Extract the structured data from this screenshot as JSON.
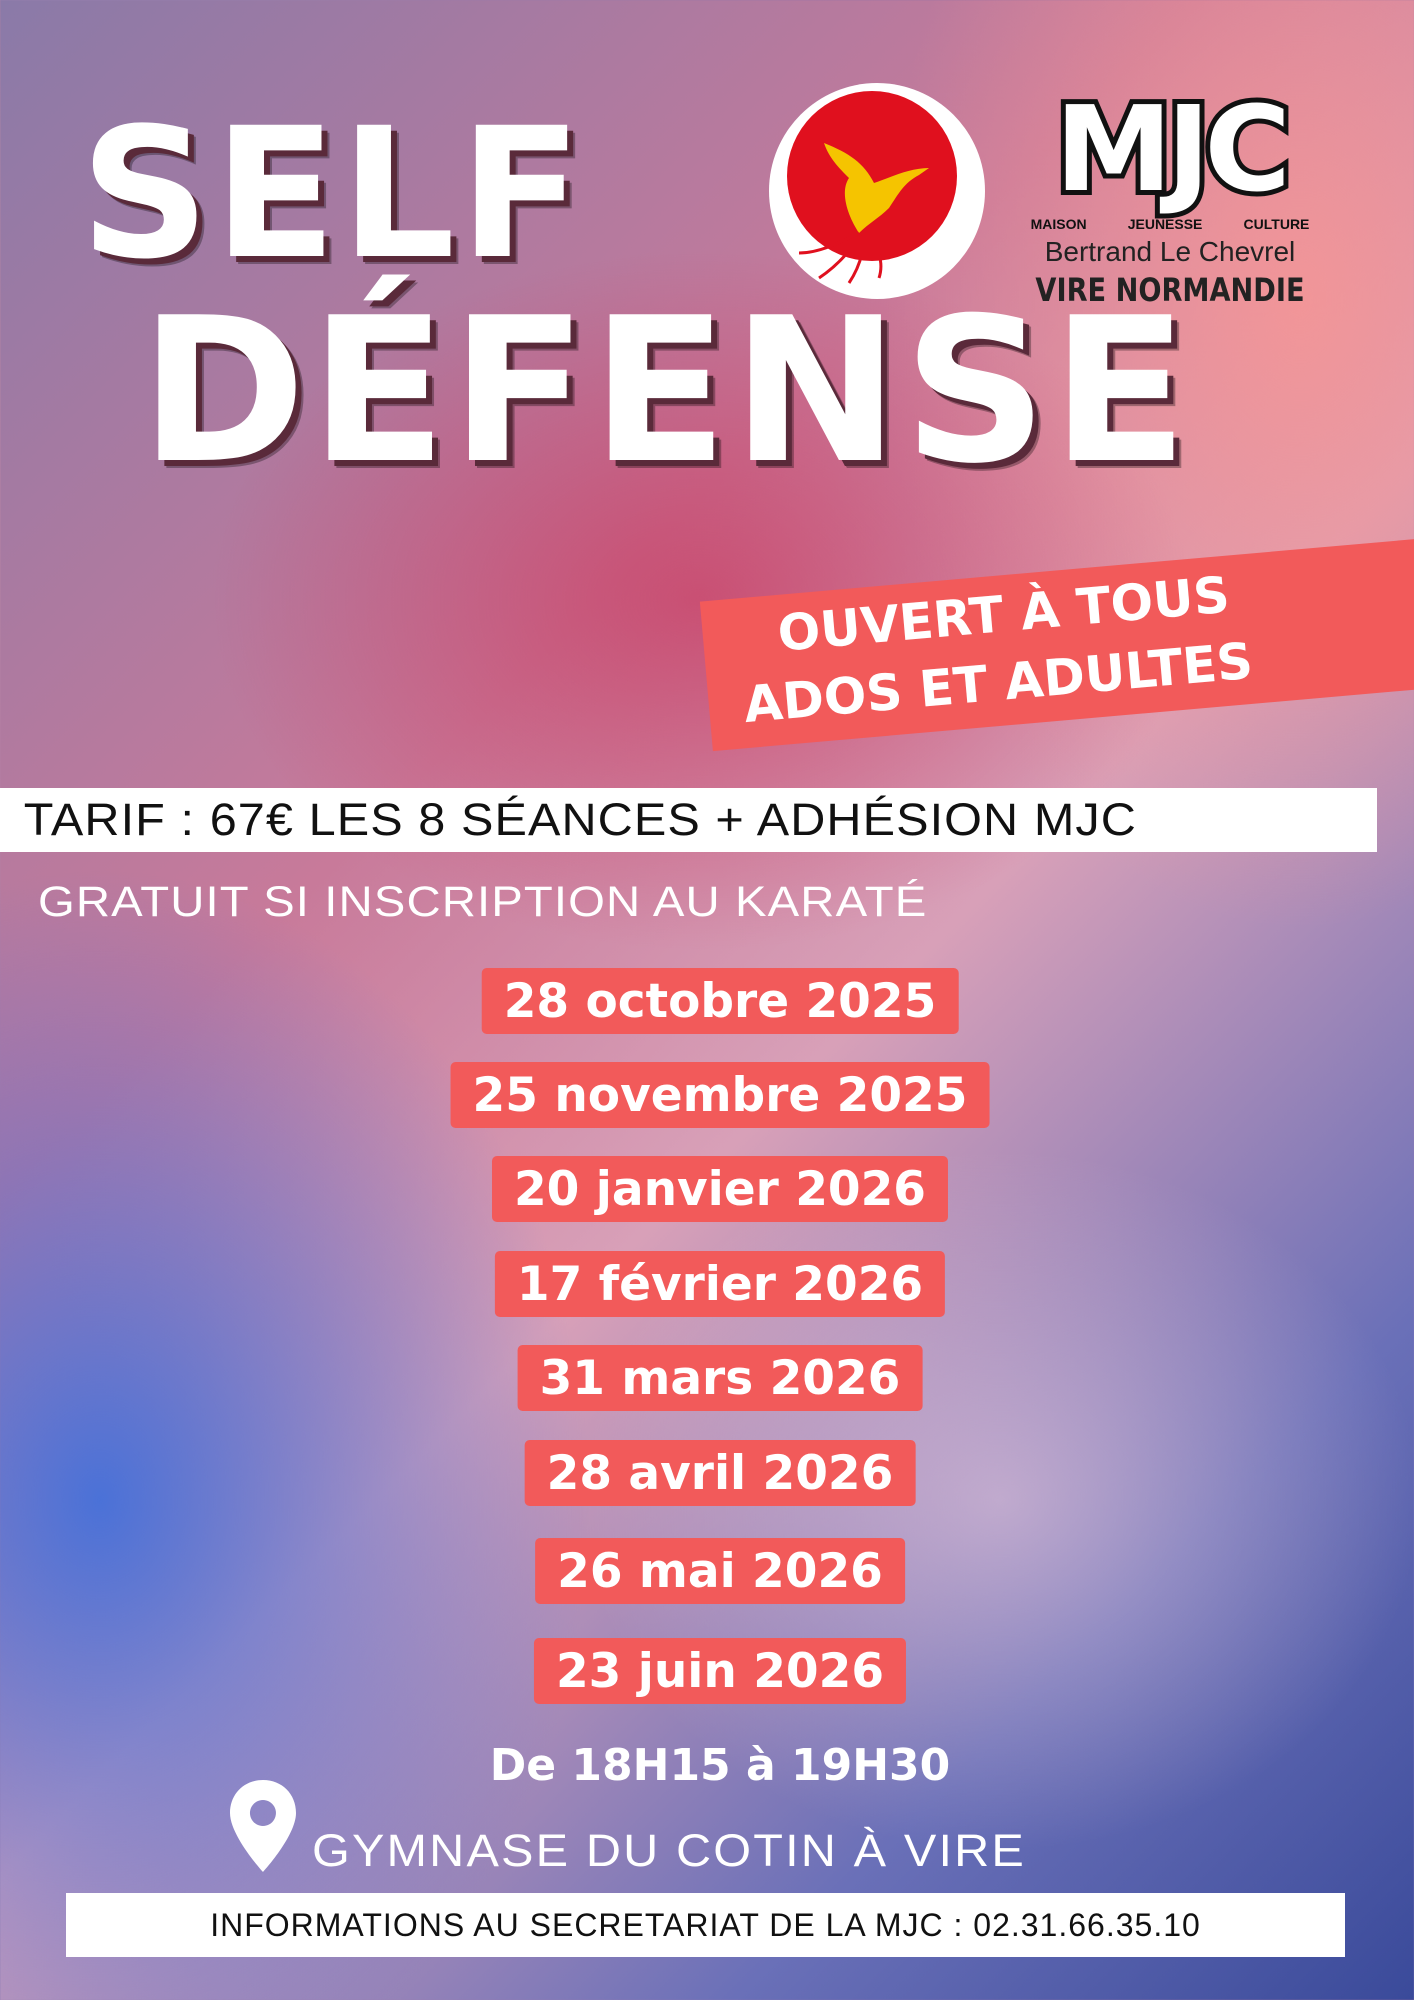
{
  "title": {
    "line1": "SELF",
    "line2": "DÉFENSE"
  },
  "logos": {
    "karate_club": {
      "icon": "phoenix-icon",
      "colors": {
        "circle": "#e0101e",
        "bird": "#f5c400"
      }
    },
    "mjc": {
      "letters": "MJC",
      "words": [
        "MAISON",
        "JEUNESSE",
        "CULTURE"
      ],
      "name": "Bertrand Le Chevrel",
      "city": "VIRE NORMANDIE"
    }
  },
  "tag": {
    "line1": "OUVERT À TOUS",
    "line2": "ADOS ET ADULTES"
  },
  "tarif": "TARIF : 67€ LES 8 SÉANCES + ADHÉSION MJC",
  "gratuit": "GRATUIT SI INSCRIPTION AU KARATÉ",
  "dates": [
    "28 octobre 2025",
    "25 novembre 2025",
    "20 janvier 2026",
    "17 février 2026",
    "31 mars 2026",
    "28 avril 2026",
    "26 mai 2026",
    "23 juin 2026"
  ],
  "hours": "De 18H15 à 19H30",
  "location": {
    "icon": "map-pin-icon",
    "text": "GYMNASE DU COTIN À VIRE"
  },
  "info": "INFORMATIONS AU SECRETARIAT DE LA MJC : 02.31.66.35.10",
  "colors": {
    "accent": "#f25a5a",
    "white": "#ffffff"
  }
}
